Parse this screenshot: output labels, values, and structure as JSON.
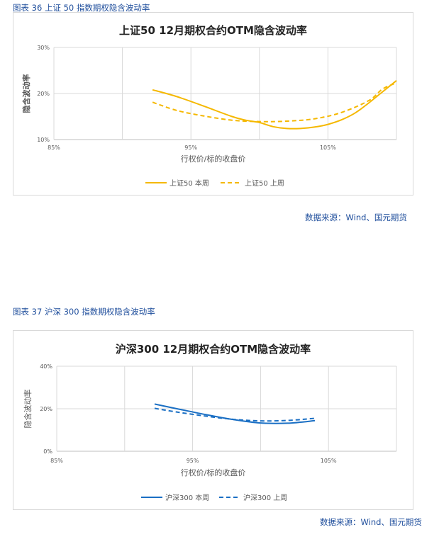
{
  "charts": [
    {
      "caption": "图表 36 上证 50 指数期权隐含波动率",
      "source": "数据来源：Wind、国元期货",
      "chart_data": {
        "type": "line",
        "title": "上证50 12月期权合约OTM隐含波动率",
        "xlabel": "行权价/标的收盘价",
        "ylabel": "隐含波动率",
        "xlim": [
          0.85,
          1.1
        ],
        "ylim": [
          0.1,
          0.3
        ],
        "x_ticks": [
          "85%",
          "95%",
          "105%"
        ],
        "y_ticks": [
          "10%",
          "20%",
          "30%"
        ],
        "grid": true,
        "legend": "bottom",
        "series": [
          {
            "name": "上证50 本周",
            "style": "solid",
            "color": "#f5b800",
            "x": [
              0.922,
              0.94,
              0.96,
              0.98,
              0.99,
              1.0,
              1.01,
              1.02,
              1.03,
              1.04,
              1.05,
              1.06,
              1.07,
              1.08,
              1.09,
              1.1
            ],
            "y": [
              0.208,
              0.193,
              0.172,
              0.15,
              0.142,
              0.137,
              0.128,
              0.124,
              0.124,
              0.127,
              0.133,
              0.143,
              0.158,
              0.18,
              0.204,
              0.228
            ]
          },
          {
            "name": "上证50 上周",
            "style": "dashed",
            "color": "#f5b800",
            "x": [
              0.922,
              0.94,
              0.96,
              0.98,
              1.0,
              1.02,
              1.04,
              1.06,
              1.08,
              1.09,
              1.1
            ],
            "y": [
              0.181,
              0.163,
              0.151,
              0.142,
              0.139,
              0.14,
              0.145,
              0.159,
              0.185,
              0.21,
              0.223
            ]
          }
        ]
      }
    },
    {
      "caption": "图表 37 沪深 300 指数期权隐含波动率",
      "source": "数据来源：Wind、国元期货",
      "chart_data": {
        "type": "line",
        "title": "沪深300 12月期权合约OTM隐含波动率",
        "xlabel": "行权价/标的收盘价",
        "ylabel": "隐含波动率",
        "xlim": [
          0.85,
          1.1
        ],
        "ylim": [
          0.0,
          0.4
        ],
        "x_ticks": [
          "85%",
          "95%",
          "105%"
        ],
        "y_ticks": [
          "0%",
          "20%",
          "40%"
        ],
        "grid": true,
        "legend": "bottom",
        "series": [
          {
            "name": "沪深300 本周",
            "style": "solid",
            "color": "#1a6fc4",
            "x": [
              0.922,
              0.94,
              0.96,
              0.98,
              1.0,
              1.02,
              1.04
            ],
            "y": [
              0.222,
              0.198,
              0.172,
              0.149,
              0.133,
              0.132,
              0.144
            ]
          },
          {
            "name": "沪深300 上周",
            "style": "dashed",
            "color": "#1a6fc4",
            "x": [
              0.922,
              0.94,
              0.96,
              0.98,
              1.0,
              1.02,
              1.04
            ],
            "y": [
              0.202,
              0.183,
              0.165,
              0.15,
              0.143,
              0.145,
              0.155
            ]
          }
        ]
      }
    }
  ]
}
